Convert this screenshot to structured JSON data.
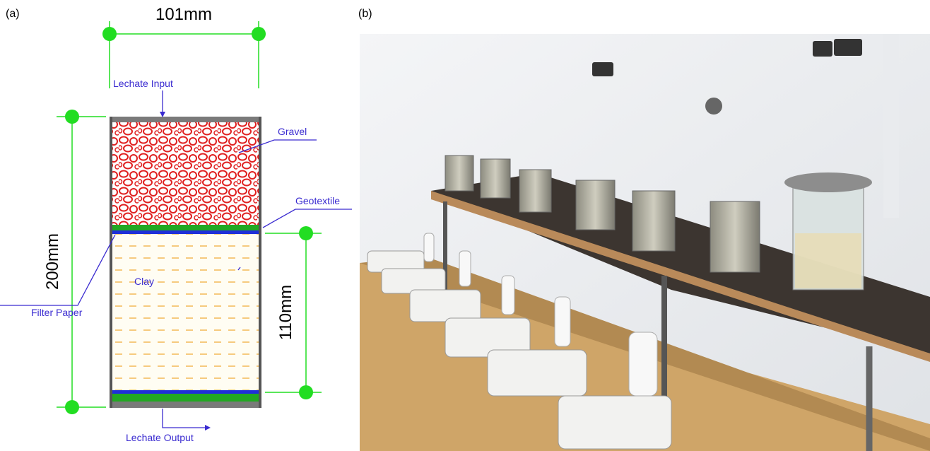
{
  "panel_a": {
    "label": "(a)",
    "dimensions": {
      "width": "101mm",
      "height": "200mm",
      "clay_height": "110mm"
    },
    "labels": {
      "input": "Lechate Input",
      "gravel": "Gravel",
      "geotextile": "Geotextile",
      "clay": "Clay",
      "filter_paper": "Filter Paper",
      "output": "Lechate Output"
    }
  },
  "panel_b": {
    "label": "(b)"
  }
}
